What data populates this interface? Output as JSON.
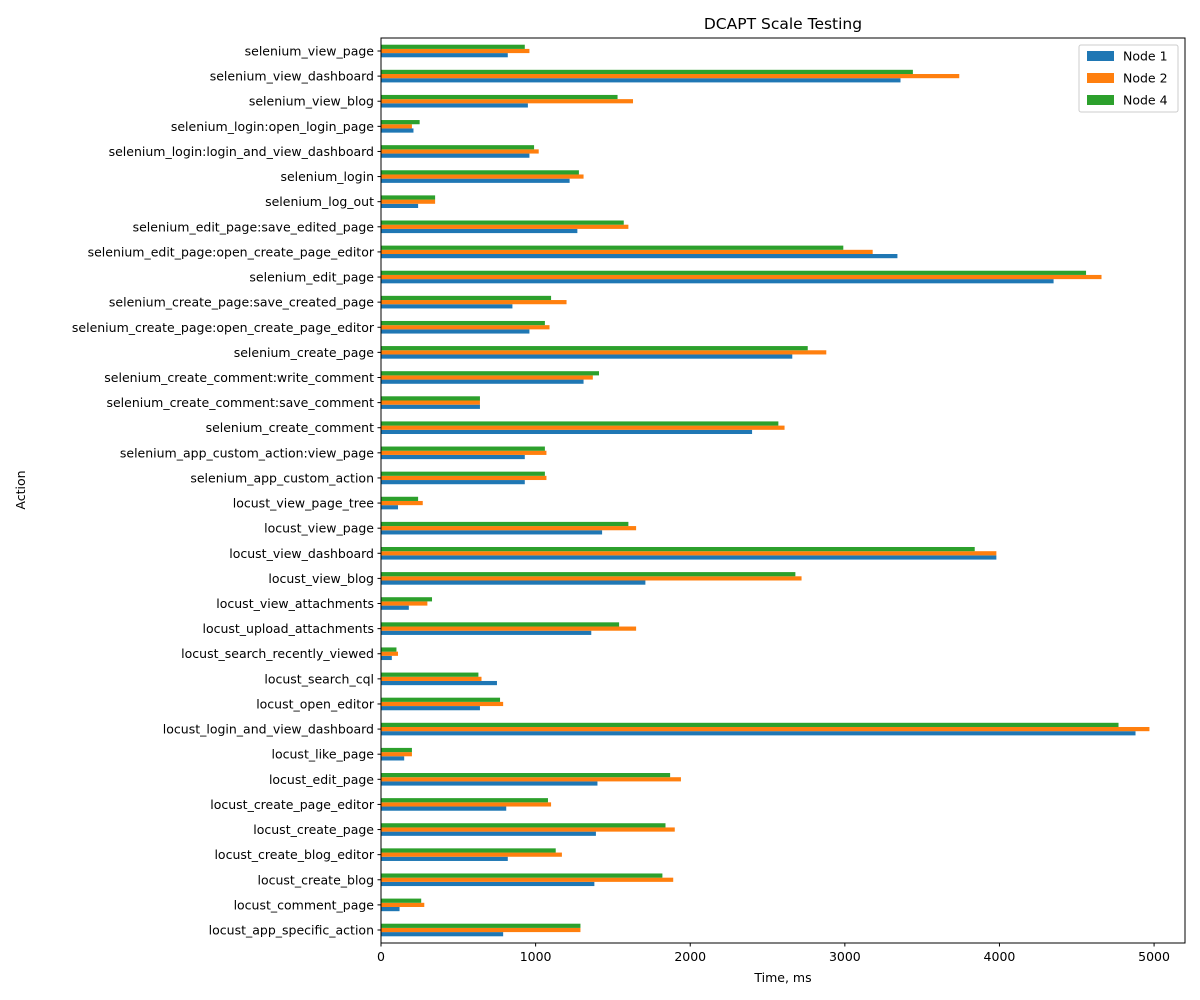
{
  "chart_data": {
    "type": "bar",
    "orientation": "horizontal",
    "title": "DCAPT Scale Testing",
    "xlabel": "Time, ms",
    "ylabel": "Action",
    "xlim": [
      0,
      5200
    ],
    "xticks": [
      0,
      1000,
      2000,
      3000,
      4000,
      5000
    ],
    "grid": false,
    "legend_position": "top-right",
    "categories": [
      "selenium_view_page",
      "selenium_view_dashboard",
      "selenium_view_blog",
      "selenium_login:open_login_page",
      "selenium_login:login_and_view_dashboard",
      "selenium_login",
      "selenium_log_out",
      "selenium_edit_page:save_edited_page",
      "selenium_edit_page:open_create_page_editor",
      "selenium_edit_page",
      "selenium_create_page:save_created_page",
      "selenium_create_page:open_create_page_editor",
      "selenium_create_page",
      "selenium_create_comment:write_comment",
      "selenium_create_comment:save_comment",
      "selenium_create_comment",
      "selenium_app_custom_action:view_page",
      "selenium_app_custom_action",
      "locust_view_page_tree",
      "locust_view_page",
      "locust_view_dashboard",
      "locust_view_blog",
      "locust_view_attachments",
      "locust_upload_attachments",
      "locust_search_recently_viewed",
      "locust_search_cql",
      "locust_open_editor",
      "locust_login_and_view_dashboard",
      "locust_like_page",
      "locust_edit_page",
      "locust_create_page_editor",
      "locust_create_page",
      "locust_create_blog_editor",
      "locust_create_blog",
      "locust_comment_page",
      "locust_app_specific_action"
    ],
    "series": [
      {
        "name": "Node 1",
        "color": "#1f77b4",
        "values": [
          820,
          3360,
          950,
          210,
          960,
          1220,
          240,
          1270,
          3340,
          4350,
          850,
          960,
          2660,
          1310,
          640,
          2400,
          930,
          930,
          110,
          1430,
          3980,
          1710,
          180,
          1360,
          70,
          750,
          640,
          4880,
          150,
          1400,
          810,
          1390,
          820,
          1380,
          120,
          790
        ]
      },
      {
        "name": "Node 2",
        "color": "#ff7f0e",
        "values": [
          960,
          3740,
          1630,
          200,
          1020,
          1310,
          350,
          1600,
          3180,
          4660,
          1200,
          1090,
          2880,
          1370,
          640,
          2610,
          1070,
          1070,
          270,
          1650,
          3980,
          2720,
          300,
          1650,
          110,
          650,
          790,
          4970,
          200,
          1940,
          1100,
          1900,
          1170,
          1890,
          280,
          1290
        ]
      },
      {
        "name": "Node 4",
        "color": "#2ca02c",
        "values": [
          930,
          3440,
          1530,
          250,
          990,
          1280,
          350,
          1570,
          2990,
          4560,
          1100,
          1060,
          2760,
          1410,
          640,
          2570,
          1060,
          1060,
          240,
          1600,
          3840,
          2680,
          330,
          1540,
          100,
          630,
          770,
          4770,
          200,
          1870,
          1080,
          1840,
          1130,
          1820,
          260,
          1290
        ]
      }
    ]
  }
}
